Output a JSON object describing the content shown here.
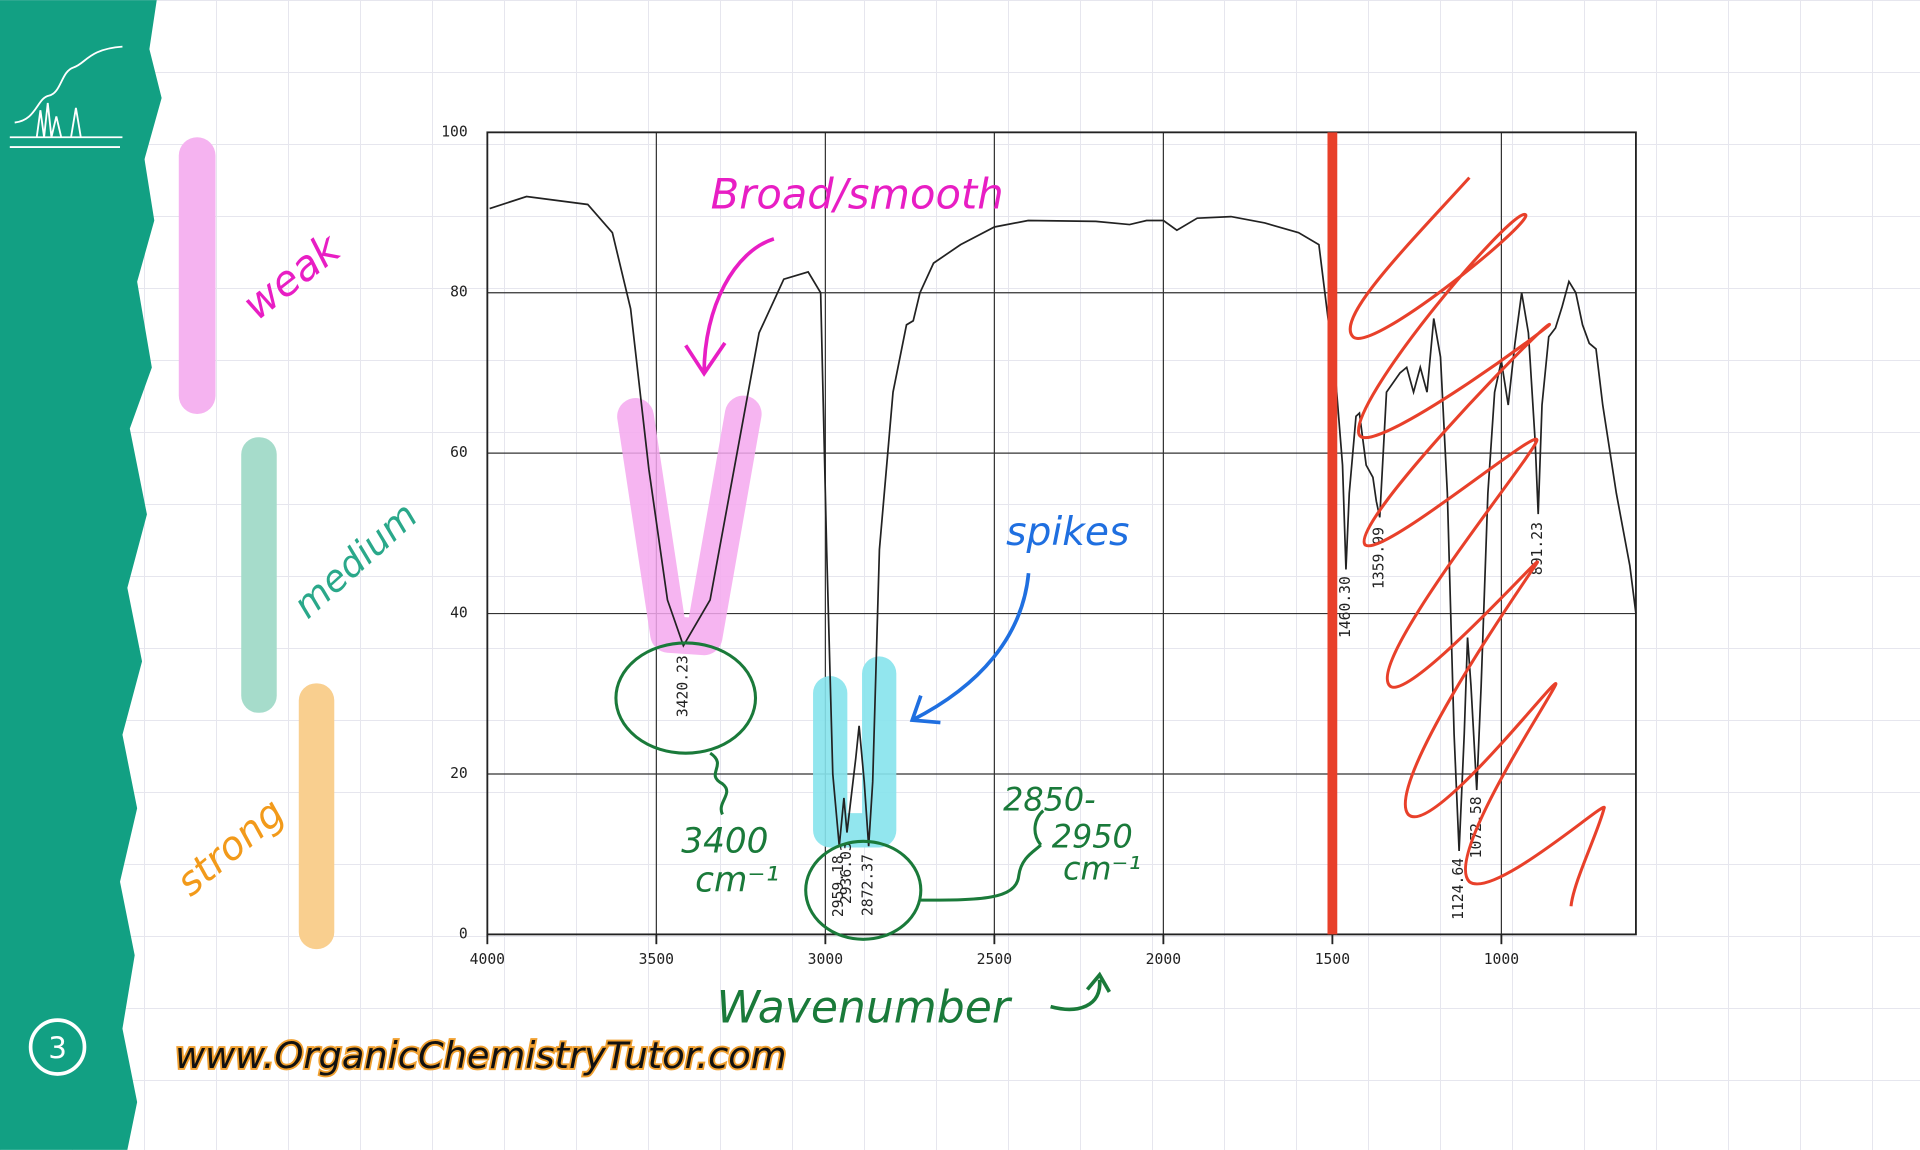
{
  "slide_number": "3",
  "website": "www.OrganicChemistryTutor.com",
  "intensity_labels": [
    "weak",
    "medium",
    "strong"
  ],
  "annotations": {
    "broad": "Broad/smooth",
    "spikes": "spikes",
    "oh_value": "3400",
    "oh_unit": "cm⁻¹",
    "ch_value_start": "2850-",
    "ch_value_end": "2950",
    "ch_unit": "cm⁻¹"
  },
  "chart_data": {
    "type": "line",
    "x_label": "Wavenumber",
    "color": "#222222",
    "xlim": [
      4000,
      602
    ],
    "ylim": [
      0,
      100
    ],
    "xticks": [
      4000,
      3500,
      3000,
      2500,
      2000,
      1500,
      1000
    ],
    "yticks": [
      0,
      20,
      40,
      60,
      80,
      100
    ],
    "grid": true,
    "divider": 1500,
    "divider_color": "#e8402a",
    "x": [
      3993,
      3884,
      3703,
      3630,
      3576,
      3522,
      3467,
      3420,
      3341,
      3268,
      3196,
      3123,
      3051,
      3014,
      2996,
      2978,
      2959,
      2945,
      2936,
      2910,
      2900,
      2885,
      2872,
      2860,
      2840,
      2800,
      2760,
      2740,
      2720,
      2680,
      2600,
      2500,
      2400,
      2200,
      2100,
      2050,
      2000,
      1960,
      1900,
      1800,
      1700,
      1600,
      1540,
      1490,
      1470,
      1460,
      1450,
      1430,
      1420,
      1400,
      1380,
      1370,
      1360,
      1340,
      1300,
      1280,
      1260,
      1240,
      1220,
      1200,
      1180,
      1160,
      1140,
      1125,
      1110,
      1100,
      1090,
      1073,
      1060,
      1040,
      1020,
      1000,
      980,
      960,
      940,
      920,
      900,
      891,
      880,
      860,
      840,
      820,
      800,
      780,
      760,
      740,
      720,
      700,
      660,
      620,
      602
    ],
    "values": [
      90.5,
      92,
      91,
      87.5,
      78,
      58,
      41.7,
      36,
      41.7,
      58.5,
      75,
      81.7,
      82.6,
      80,
      48,
      20,
      11,
      17,
      12.7,
      22,
      26,
      19,
      11,
      19,
      48,
      67.6,
      76,
      76.5,
      80,
      83.7,
      86,
      88.2,
      89,
      88.9,
      88.5,
      89,
      89,
      87.8,
      89.3,
      89.5,
      88.7,
      87.5,
      86,
      69,
      58.5,
      45.5,
      55,
      64.6,
      65,
      58.5,
      57,
      54,
      52,
      67.6,
      70,
      70.7,
      67.6,
      70.7,
      67.6,
      76.8,
      72,
      55,
      25,
      10.4,
      25,
      37,
      31,
      18,
      31,
      55,
      67.6,
      71.5,
      66,
      73.7,
      80,
      75,
      61.5,
      52.4,
      66,
      74.5,
      75.6,
      78.3,
      81.4,
      80,
      76,
      73.7,
      73,
      66,
      55,
      46,
      40
    ],
    "peaks": [
      {
        "value": 3420.23,
        "label": "3420.23"
      },
      {
        "value": 2959.18,
        "label": "2959.18"
      },
      {
        "value": 2936.03,
        "label": "2936.03"
      },
      {
        "value": 2872.37,
        "label": "2872.37"
      },
      {
        "value": 1460.3,
        "label": "1460.30"
      },
      {
        "value": 1359.99,
        "label": "1359.99"
      },
      {
        "value": 1124.64,
        "label": "1124.64"
      },
      {
        "value": 1072.58,
        "label": "1072.58"
      },
      {
        "value": 891.23,
        "label": "891.23"
      }
    ]
  }
}
